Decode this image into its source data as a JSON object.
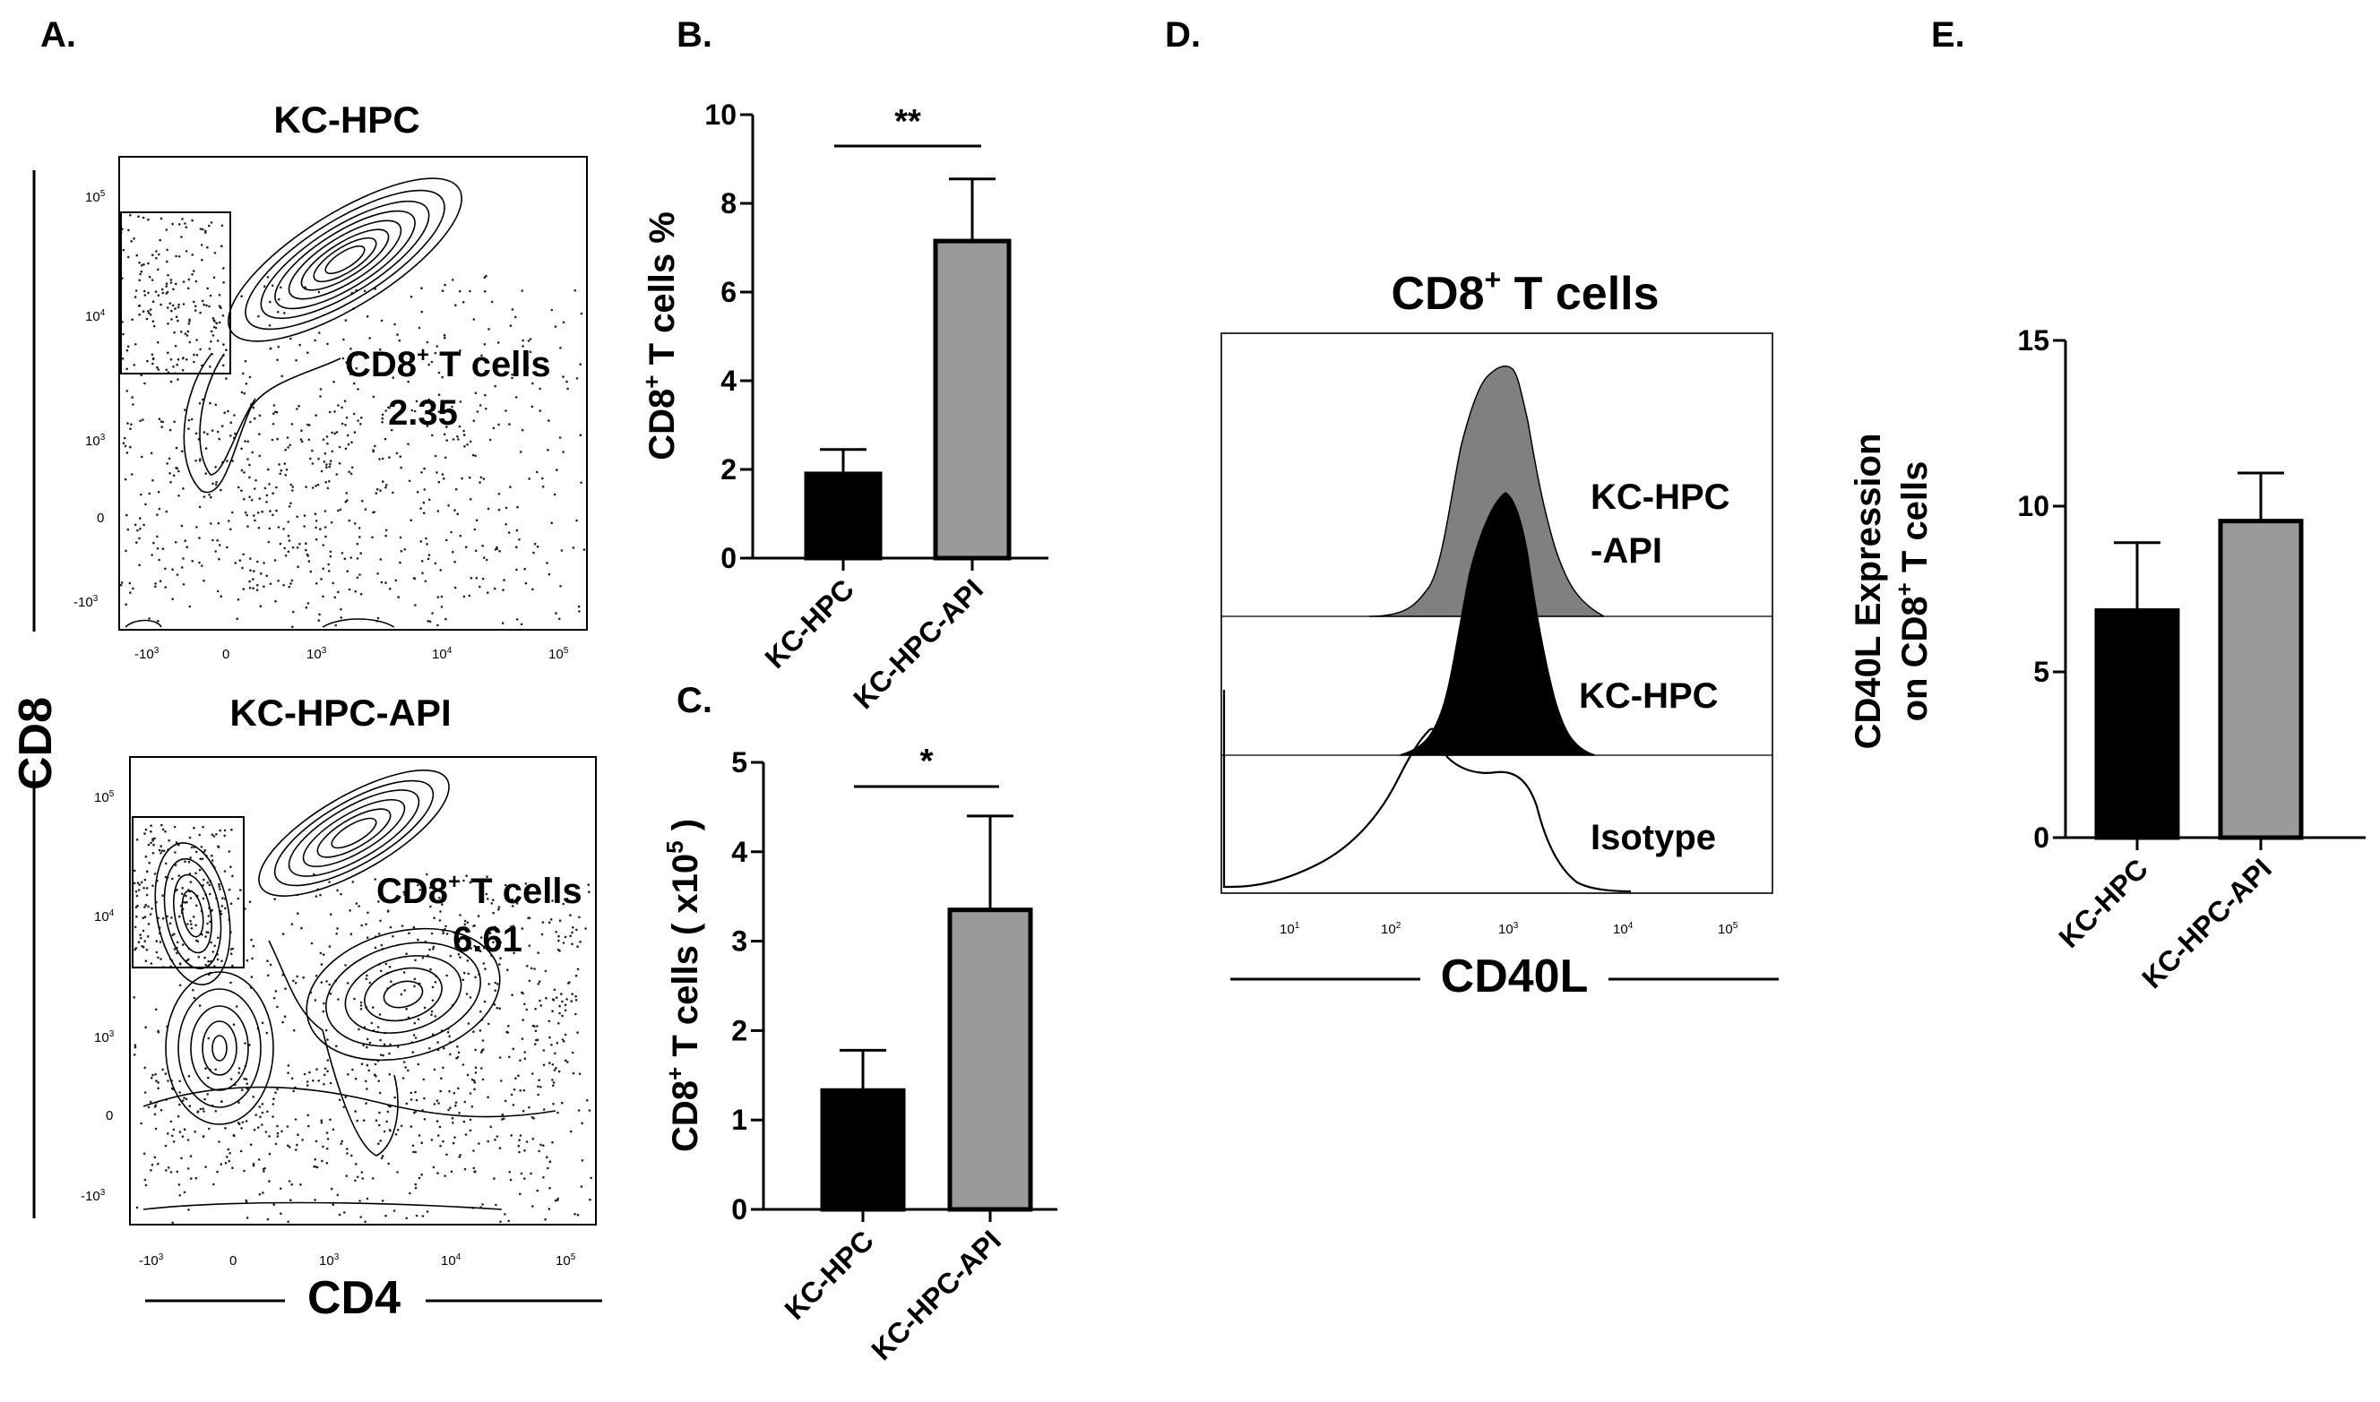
{
  "panels": {
    "A": {
      "letter": "A.",
      "plots": [
        {
          "title": "KC-HPC",
          "gate_label_main": "CD8",
          "gate_label_sup": "+",
          "gate_label_rest": " T cells",
          "gate_value": "2.35"
        },
        {
          "title": "KC-HPC-API",
          "gate_label_main": "CD8",
          "gate_label_sup": "+",
          "gate_label_rest": " T cells",
          "gate_value": "6.61"
        }
      ],
      "x_axis_label": "CD4",
      "y_axis_label": "CD8",
      "x_ticks": [
        "-10",
        "0",
        "10",
        "10",
        "10"
      ],
      "x_tick_exps": [
        "3",
        "",
        "3",
        "4",
        "5"
      ],
      "y_ticks": [
        "10",
        "10",
        "10",
        "0",
        "-10"
      ],
      "y_tick_exps": [
        "5",
        "4",
        "3",
        "",
        "3"
      ]
    },
    "D": {
      "letter": "D.",
      "title_main": "CD8",
      "title_sup": "+",
      "title_rest": " T cells",
      "x_axis_label": "CD40L",
      "tracks": [
        "KC-HPC",
        "-API",
        "KC-HPC",
        "Isotype"
      ],
      "x_ticks": [
        "10",
        "10",
        "10",
        "10",
        "10"
      ],
      "x_tick_exps": [
        "1",
        "2",
        "3",
        "4",
        "5"
      ]
    }
  },
  "chart_data": [
    {
      "panel": "B.",
      "type": "bar",
      "categories": [
        "KC-HPC",
        "KC-HPC-API"
      ],
      "values": [
        1.9,
        7.15
      ],
      "errors": [
        0.55,
        1.4
      ],
      "colors": [
        "#000000",
        "#9a9a9a"
      ],
      "ylim": [
        0,
        10
      ],
      "yticks": [
        "0",
        "2",
        "4",
        "6",
        "8",
        "10"
      ],
      "ylabel_main": "CD8",
      "ylabel_sup": "+",
      "ylabel_rest": " T cells %",
      "significance": "**"
    },
    {
      "panel": "C.",
      "type": "bar",
      "categories": [
        "KC-HPC",
        "KC-HPC-API"
      ],
      "values": [
        1.33,
        3.35
      ],
      "errors": [
        0.45,
        1.05
      ],
      "colors": [
        "#000000",
        "#9a9a9a"
      ],
      "ylim": [
        0,
        5
      ],
      "yticks": [
        "0",
        "1",
        "2",
        "3",
        "4",
        "5"
      ],
      "ylabel_main": "CD8",
      "ylabel_sup": "+",
      "ylabel_rest": " T cells ( x10",
      "ylabel_sup2": "5",
      "ylabel_end": " )",
      "significance": "*"
    },
    {
      "panel": "E.",
      "type": "bar",
      "categories": [
        "KC-HPC",
        "KC-HPC-API"
      ],
      "values": [
        6.85,
        9.55
      ],
      "errors": [
        2.05,
        1.45
      ],
      "colors": [
        "#000000",
        "#9a9a9a"
      ],
      "ylim": [
        0,
        15
      ],
      "yticks": [
        "0",
        "5",
        "10",
        "15"
      ],
      "ylabel_line1": "CD40L Expression",
      "ylabel_line2_pre": "on CD8",
      "ylabel_line2_sup": "+",
      "ylabel_line2_post": " T cells"
    }
  ]
}
